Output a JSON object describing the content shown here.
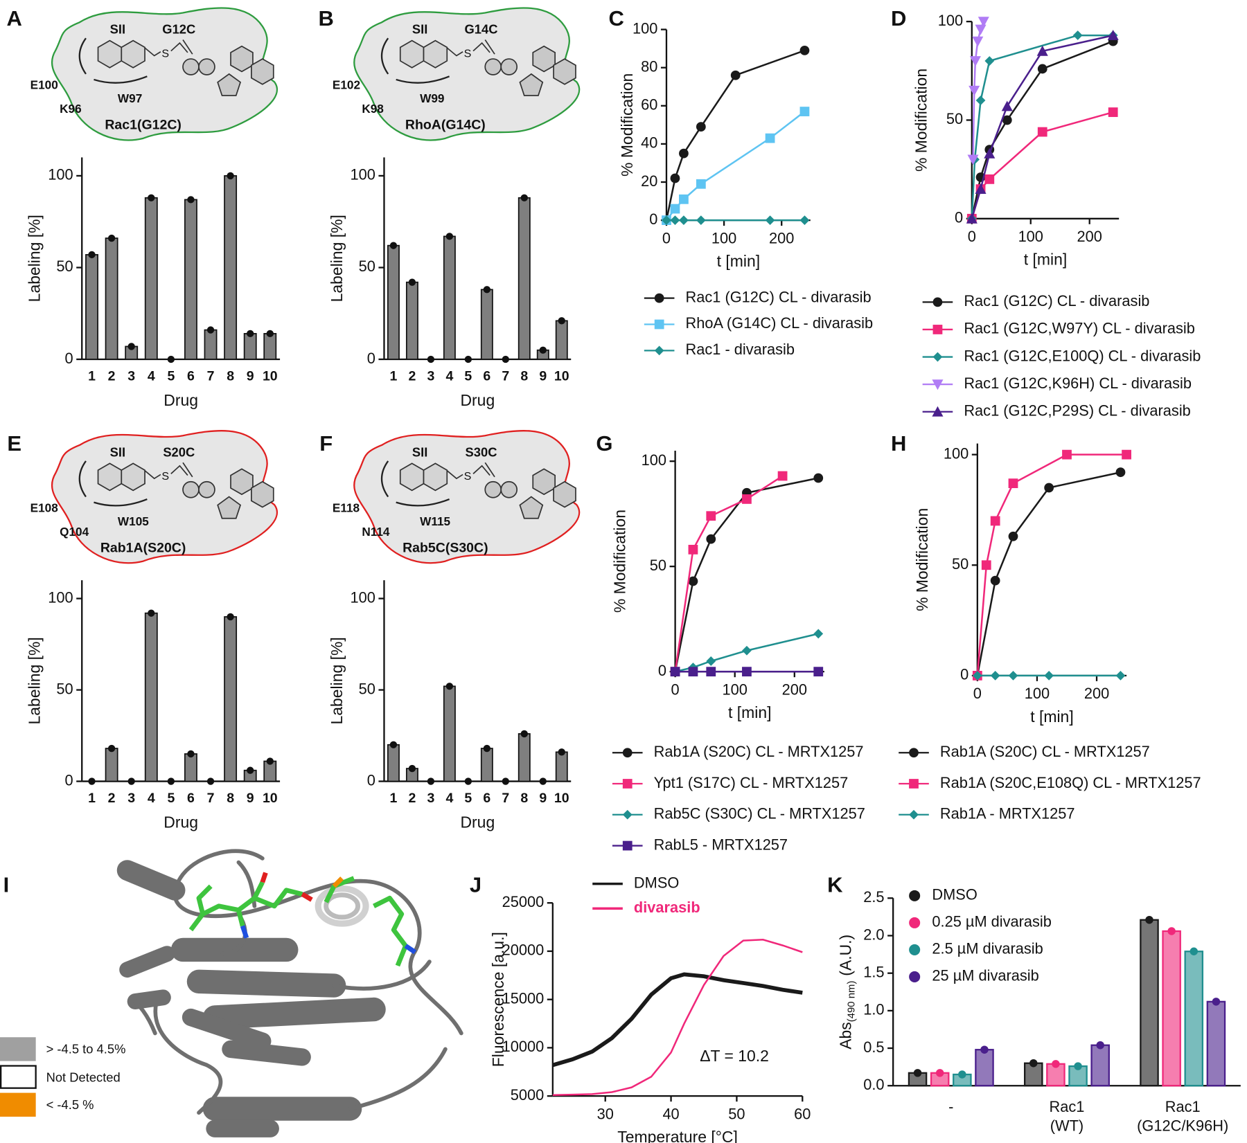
{
  "chart_data": [
    {
      "panel": "A",
      "type": "bar",
      "schematic": {
        "site": "SII",
        "mutation": "G12C",
        "thiol": "S",
        "residues": [
          "E100",
          "K96",
          "W97"
        ],
        "protein": "Rac1(G12C)",
        "color": "#2e9c3f"
      },
      "categories": [
        "1",
        "2",
        "3",
        "4",
        "5",
        "6",
        "7",
        "8",
        "9",
        "10"
      ],
      "values": [
        57,
        66,
        7,
        88,
        0,
        87,
        16,
        100,
        14,
        14
      ],
      "color": "#7f7f7f",
      "xlabel": "Drug",
      "ylabel": "Labeling [%]",
      "ylim": [
        0,
        110
      ],
      "yticks": [
        0,
        50,
        100
      ]
    },
    {
      "panel": "B",
      "type": "bar",
      "schematic": {
        "site": "SII",
        "mutation": "G14C",
        "thiol": "S",
        "residues": [
          "E102",
          "K98",
          "W99"
        ],
        "protein": "RhoA(G14C)",
        "color": "#2e9c3f"
      },
      "categories": [
        "1",
        "2",
        "3",
        "4",
        "5",
        "6",
        "7",
        "8",
        "9",
        "10"
      ],
      "values": [
        62,
        42,
        0,
        67,
        0,
        38,
        0,
        88,
        5,
        21
      ],
      "color": "#7f7f7f",
      "xlabel": "Drug",
      "ylabel": "Labeling [%]",
      "ylim": [
        0,
        110
      ],
      "yticks": [
        0,
        50,
        100
      ]
    },
    {
      "panel": "C",
      "type": "line",
      "xlabel": "t [min]",
      "ylabel": "% Modification",
      "xlim": [
        0,
        250
      ],
      "ylim": [
        0,
        100
      ],
      "xticks": [
        0,
        100,
        200
      ],
      "yticks": [
        0,
        20,
        40,
        60,
        80,
        100
      ],
      "series": [
        {
          "name": "Rac1 (G12C) CL - divarasib",
          "color": "#1a1a1a",
          "marker": "circle",
          "x": [
            0,
            15,
            30,
            60,
            120,
            240
          ],
          "values": [
            0,
            22,
            35,
            49,
            76,
            89
          ]
        },
        {
          "name": "RhoA (G14C) CL - divarasib",
          "color": "#5ec4f2",
          "marker": "square",
          "x": [
            0,
            15,
            30,
            60,
            180,
            240
          ],
          "values": [
            0,
            6,
            11,
            19,
            43,
            57
          ]
        },
        {
          "name": "Rac1 - divarasib",
          "color": "#1f8f8f",
          "marker": "diamond",
          "x": [
            0,
            15,
            30,
            60,
            180,
            240
          ],
          "values": [
            0,
            0,
            0,
            0,
            0,
            0
          ]
        }
      ]
    },
    {
      "panel": "D",
      "type": "line",
      "xlabel": "t [min]",
      "ylabel": "% Modification",
      "xlim": [
        0,
        250
      ],
      "ylim": [
        0,
        100
      ],
      "xticks": [
        0,
        100,
        200
      ],
      "yticks": [
        0,
        50,
        100
      ],
      "series": [
        {
          "name": "Rac1 (G12C) CL - divarasib",
          "color": "#1a1a1a",
          "marker": "circle",
          "x": [
            0,
            15,
            30,
            60,
            120,
            240
          ],
          "values": [
            0,
            21,
            35,
            50,
            76,
            90
          ]
        },
        {
          "name": "Rac1 (G12C,W97Y) CL - divarasib",
          "color": "#f0287a",
          "marker": "square",
          "x": [
            0,
            15,
            30,
            120,
            240
          ],
          "values": [
            0,
            15,
            20,
            44,
            54
          ]
        },
        {
          "name": "Rac1 (G12C,E100Q) CL - divarasib",
          "color": "#1f8f8f",
          "marker": "diamond",
          "x": [
            0,
            5,
            15,
            30,
            180,
            240
          ],
          "values": [
            0,
            30,
            60,
            80,
            93,
            93
          ]
        },
        {
          "name": "Rac1 (G12C,K96H) CL - divarasib",
          "color": "#b07cf5",
          "marker": "triangle-down",
          "x": [
            2,
            4,
            6,
            10,
            15,
            20
          ],
          "values": [
            30,
            65,
            80,
            90,
            96,
            100
          ]
        },
        {
          "name": "Rac1 (G12C,P29S) CL - divarasib",
          "color": "#4a1f8c",
          "marker": "triangle-up",
          "x": [
            0,
            15,
            30,
            60,
            120,
            240
          ],
          "values": [
            0,
            15,
            33,
            57,
            85,
            93
          ]
        }
      ]
    },
    {
      "panel": "E",
      "type": "bar",
      "schematic": {
        "site": "SII",
        "mutation": "S20C",
        "thiol": "S",
        "residues": [
          "E108",
          "Q104",
          "W105"
        ],
        "protein": "Rab1A(S20C)",
        "color": "#e02020"
      },
      "categories": [
        "1",
        "2",
        "3",
        "4",
        "5",
        "6",
        "7",
        "8",
        "9",
        "10"
      ],
      "values": [
        0,
        18,
        0,
        92,
        0,
        15,
        0,
        90,
        6,
        11
      ],
      "color": "#7f7f7f",
      "xlabel": "Drug",
      "ylabel": "Labeling [%]",
      "ylim": [
        0,
        110
      ],
      "yticks": [
        0,
        50,
        100
      ]
    },
    {
      "panel": "F",
      "type": "bar",
      "schematic": {
        "site": "SII",
        "mutation": "S30C",
        "thiol": "S",
        "residues": [
          "E118",
          "N114",
          "W115"
        ],
        "protein": "Rab5C(S30C)",
        "color": "#e02020"
      },
      "categories": [
        "1",
        "2",
        "3",
        "4",
        "5",
        "6",
        "7",
        "8",
        "9",
        "10"
      ],
      "values": [
        20,
        7,
        0,
        52,
        0,
        18,
        0,
        26,
        0,
        16
      ],
      "color": "#7f7f7f",
      "xlabel": "Drug",
      "ylabel": "Labeling [%]",
      "ylim": [
        0,
        110
      ],
      "yticks": [
        0,
        50,
        100
      ]
    },
    {
      "panel": "G",
      "type": "line",
      "xlabel": "t [min]",
      "ylabel": "% Modification",
      "xlim": [
        0,
        250
      ],
      "ylim": [
        0,
        105
      ],
      "xticks": [
        0,
        100,
        200
      ],
      "yticks": [
        0,
        50,
        100
      ],
      "series": [
        {
          "name": "Rab1A (S20C) CL - MRTX1257",
          "color": "#1a1a1a",
          "marker": "circle",
          "x": [
            0,
            30,
            60,
            120,
            240
          ],
          "values": [
            0,
            43,
            63,
            85,
            92
          ]
        },
        {
          "name": "Ypt1 (S17C) CL - MRTX1257",
          "color": "#f0287a",
          "marker": "square",
          "x": [
            0,
            30,
            60,
            120,
            180
          ],
          "values": [
            0,
            58,
            74,
            82,
            93
          ]
        },
        {
          "name": "Rab5C (S30C) CL - MRTX1257",
          "color": "#1f8f8f",
          "marker": "diamond",
          "x": [
            0,
            30,
            60,
            120,
            240
          ],
          "values": [
            0,
            2,
            5,
            10,
            18
          ]
        },
        {
          "name": "RabL5 - MRTX1257",
          "color": "#4a1f8c",
          "marker": "square",
          "x": [
            0,
            30,
            60,
            120,
            240
          ],
          "values": [
            0,
            0,
            0,
            0,
            0
          ]
        }
      ]
    },
    {
      "panel": "H",
      "type": "line",
      "xlabel": "t [min]",
      "ylabel": "% Modification",
      "xlim": [
        0,
        250
      ],
      "ylim": [
        0,
        105
      ],
      "xticks": [
        0,
        100,
        200
      ],
      "yticks": [
        0,
        50,
        100
      ],
      "series": [
        {
          "name": "Rab1A (S20C) CL - MRTX1257",
          "color": "#1a1a1a",
          "marker": "circle",
          "x": [
            0,
            30,
            60,
            120,
            240
          ],
          "values": [
            0,
            43,
            63,
            85,
            92
          ]
        },
        {
          "name": "Rab1A (S20C,E108Q) CL - MRTX1257",
          "color": "#f0287a",
          "marker": "square",
          "x": [
            0,
            15,
            30,
            60,
            150,
            250
          ],
          "values": [
            0,
            50,
            70,
            87,
            100,
            100
          ]
        },
        {
          "name": "Rab1A - MRTX1257",
          "color": "#1f8f8f",
          "marker": "diamond",
          "x": [
            0,
            30,
            60,
            120,
            240
          ],
          "values": [
            0,
            0,
            0,
            0,
            0
          ]
        }
      ]
    },
    {
      "panel": "J",
      "type": "line",
      "xlabel": "Temperature [°C]",
      "ylabel": "Fluorescence [a.u.]",
      "annotation": "ΔT = 10.2",
      "xlim": [
        22,
        60
      ],
      "ylim": [
        5000,
        25000
      ],
      "xticks": [
        30,
        40,
        50,
        60
      ],
      "yticks": [
        5000,
        10000,
        15000,
        20000,
        25000
      ],
      "series": [
        {
          "name": "DMSO",
          "color": "#1a1a1a",
          "marker": "none",
          "x": [
            22,
            25,
            28,
            31,
            34,
            37,
            40,
            42,
            45,
            48,
            51,
            54,
            57,
            60
          ],
          "values": [
            8200,
            8800,
            9600,
            11000,
            13000,
            15500,
            17200,
            17600,
            17400,
            17000,
            16700,
            16400,
            16000,
            15700
          ]
        },
        {
          "name": "divarasib",
          "color": "#f0287a",
          "marker": "none",
          "x": [
            22,
            25,
            28,
            31,
            34,
            37,
            40,
            42,
            45,
            48,
            51,
            54,
            57,
            60
          ],
          "values": [
            5100,
            5150,
            5200,
            5400,
            5900,
            7000,
            9500,
            12500,
            16500,
            19500,
            21100,
            21200,
            20600,
            19900
          ]
        }
      ]
    },
    {
      "panel": "K",
      "type": "grouped_bar",
      "ylabel": "Abs",
      "ylabel_sub": "(490 nm)",
      "ylabel_unit": "(A.U.)",
      "categories": [
        "-",
        [
          "Rac1",
          "(WT)"
        ],
        [
          "Rac1",
          "(G12C/K96H)"
        ]
      ],
      "ylim": [
        0,
        2.5
      ],
      "yticks": [
        {
          "value": 0,
          "label": "0.0"
        },
        0.5,
        {
          "value": 1,
          "label": "1.0"
        },
        1.5,
        {
          "value": 2,
          "label": "2.0"
        },
        2.5
      ],
      "series": [
        {
          "name": "DMSO",
          "color": "#1a1a1a",
          "values": [
            0.17,
            0.3,
            2.21
          ]
        },
        {
          "name": "0.25 µM divarasib",
          "color": "#f0287a",
          "values": [
            0.17,
            0.29,
            2.06
          ]
        },
        {
          "name": "2.5 µM divarasib",
          "color": "#1f8f8f",
          "values": [
            0.15,
            0.26,
            1.79
          ]
        },
        {
          "name": "25 µM divarasib",
          "color": "#4a1f8c",
          "values": [
            0.48,
            0.54,
            1.12
          ]
        }
      ]
    }
  ],
  "structure": {
    "panel": "I",
    "legend": [
      "> -4.5 to 4.5%",
      "Not Detected",
      "< -4.5 %"
    ]
  }
}
